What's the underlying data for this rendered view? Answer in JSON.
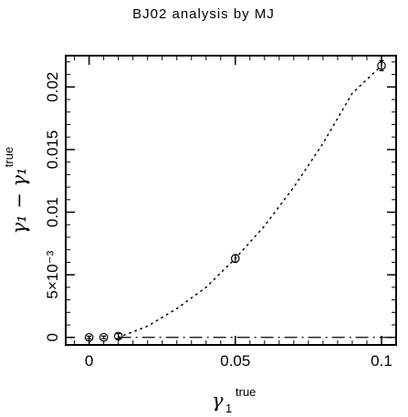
{
  "chart_data": {
    "type": "scatter",
    "title": "BJ02 analysis by MJ",
    "xlabel": {
      "symbol": "γ",
      "sub": "1",
      "sup": "true"
    },
    "ylabel": {
      "text": "γ₁ − γ₁",
      "sup": "true"
    },
    "xlim": [
      -0.008,
      0.105
    ],
    "ylim": [
      -0.0006,
      0.0225
    ],
    "x_ticks": [
      {
        "value": 0,
        "label": "0"
      },
      {
        "value": 0.05,
        "label": "0.05"
      },
      {
        "value": 0.1,
        "label": "0.1"
      }
    ],
    "y_ticks": [
      {
        "value": 0,
        "label": "0"
      },
      {
        "value": 0.005,
        "label": "5×10⁻³"
      },
      {
        "value": 0.01,
        "label": "0.01"
      },
      {
        "value": 0.015,
        "label": "0.015"
      },
      {
        "value": 0.02,
        "label": "0.02"
      }
    ],
    "series": [
      {
        "kind": "points_with_errorbars",
        "x": [
          0,
          0.005,
          0.01,
          0.05,
          0.1
        ],
        "y": [
          0.0,
          0.0,
          0.0001,
          0.0063,
          0.0217
        ],
        "yerr": [
          0.0001,
          0.0001,
          0.0002,
          0.0003,
          0.0004
        ]
      },
      {
        "kind": "fit",
        "style": "dotted",
        "x": [
          0.01,
          0.02,
          0.03,
          0.04,
          0.05,
          0.06,
          0.07,
          0.08,
          0.09,
          0.1
        ],
        "y": [
          0.0,
          0.0009,
          0.0023,
          0.004,
          0.0063,
          0.0089,
          0.012,
          0.0155,
          0.0195,
          0.0217
        ]
      },
      {
        "kind": "reference_line",
        "style": "dash-dot",
        "y": 0
      }
    ],
    "grid": false
  }
}
